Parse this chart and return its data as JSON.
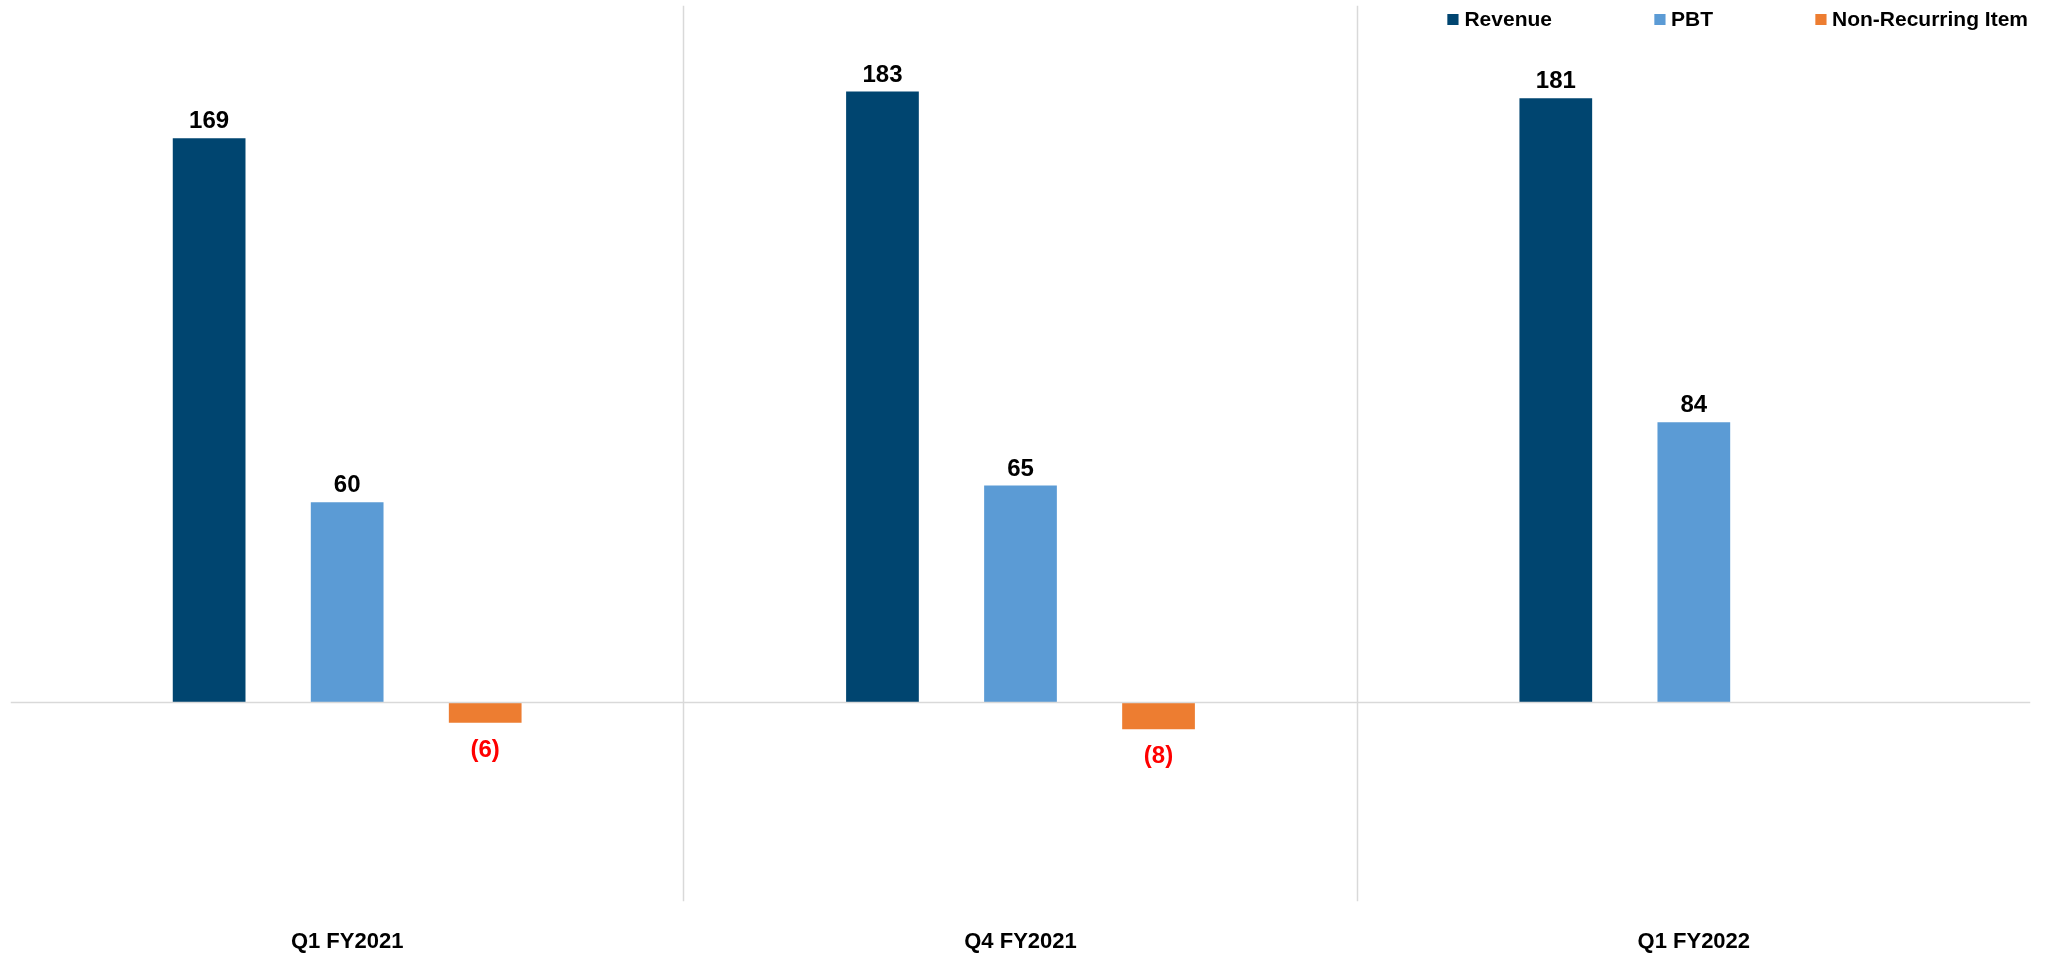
{
  "chart_data": {
    "type": "bar",
    "categories": [
      "Q1 FY2021",
      "Q4 FY2021",
      "Q1 FY2022"
    ],
    "grid": "x",
    "legend": "top right",
    "series": [
      {
        "name": "Revenue",
        "color": "#004570",
        "values": [
          169,
          183,
          181
        ],
        "value_labels": [
          "169",
          "183",
          "181"
        ]
      },
      {
        "name": "PBT",
        "color": "#5b9bd5",
        "values": [
          60,
          65,
          84
        ],
        "value_labels": [
          "60",
          "65",
          "84"
        ]
      },
      {
        "name": "Non-Recurring Item",
        "color": "#ed7d31",
        "values": [
          -6,
          -8,
          null
        ],
        "value_labels": [
          "(6)",
          "(8)",
          null
        ]
      }
    ]
  }
}
